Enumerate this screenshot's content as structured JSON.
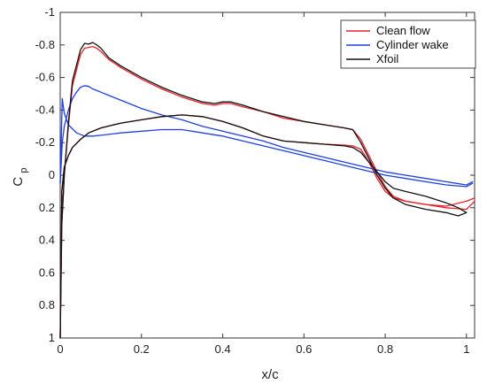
{
  "chart_data": {
    "type": "line",
    "title": "",
    "xlabel": "x/c",
    "ylabel_main": "C",
    "ylabel_sub": "p",
    "xlim": [
      0,
      1.02
    ],
    "ylim": [
      1,
      -1
    ],
    "y_axis_reversed": true,
    "grid": false,
    "legend_position": "top-right",
    "x_ticks": [
      0,
      0.2,
      0.4,
      0.6,
      0.8,
      1
    ],
    "x_tick_labels": [
      "0",
      "0.2",
      "0.4",
      "0.6",
      "0.8",
      "1"
    ],
    "y_ticks": [
      -1,
      -0.8,
      -0.6,
      -0.4,
      -0.2,
      0,
      0.2,
      0.4,
      0.6,
      0.8,
      1
    ],
    "y_tick_labels": [
      "-1",
      "-0.8",
      "-0.6",
      "-0.4",
      "-0.2",
      "0",
      "0.2",
      "0.4",
      "0.6",
      "0.8",
      "1"
    ],
    "series": [
      {
        "name": "Clean flow",
        "color": "#e8202a",
        "upper": {
          "x": [
            0,
            0.004,
            0.01,
            0.02,
            0.03,
            0.05,
            0.06,
            0.07,
            0.08,
            0.09,
            0.1,
            0.12,
            0.15,
            0.2,
            0.25,
            0.3,
            0.35,
            0.38,
            0.4,
            0.42,
            0.45,
            0.5,
            0.55,
            0.6,
            0.65,
            0.7,
            0.72,
            0.74,
            0.76,
            0.78,
            0.8,
            0.82,
            0.85,
            0.9,
            0.95,
            1.0,
            1.02
          ],
          "y": [
            1.0,
            0.3,
            0.0,
            -0.3,
            -0.55,
            -0.74,
            -0.78,
            -0.785,
            -0.79,
            -0.78,
            -0.76,
            -0.71,
            -0.66,
            -0.59,
            -0.53,
            -0.48,
            -0.44,
            -0.43,
            -0.44,
            -0.44,
            -0.42,
            -0.39,
            -0.35,
            -0.33,
            -0.31,
            -0.29,
            -0.28,
            -0.22,
            -0.12,
            -0.02,
            0.07,
            0.13,
            0.16,
            0.18,
            0.2,
            0.21,
            0.16
          ]
        },
        "lower": {
          "x": [
            0,
            0.004,
            0.01,
            0.02,
            0.03,
            0.05,
            0.07,
            0.1,
            0.15,
            0.2,
            0.25,
            0.3,
            0.35,
            0.4,
            0.45,
            0.5,
            0.55,
            0.6,
            0.65,
            0.7,
            0.72,
            0.74,
            0.76,
            0.78,
            0.8,
            0.82,
            0.85,
            0.9,
            0.95,
            1.0,
            1.02
          ],
          "y": [
            1.0,
            0.1,
            -0.05,
            -0.12,
            -0.17,
            -0.22,
            -0.26,
            -0.29,
            -0.32,
            -0.34,
            -0.36,
            -0.37,
            -0.36,
            -0.33,
            -0.29,
            -0.24,
            -0.21,
            -0.2,
            -0.19,
            -0.185,
            -0.18,
            -0.16,
            -0.08,
            0.02,
            0.1,
            0.14,
            0.16,
            0.18,
            0.19,
            0.16,
            0.14
          ]
        }
      },
      {
        "name": "Cylinder wake",
        "color": "#1f3fe0",
        "upper": {
          "x": [
            0,
            0.005,
            0.01,
            0.02,
            0.03,
            0.04,
            0.05,
            0.06,
            0.07,
            0.08,
            0.1,
            0.15,
            0.2,
            0.25,
            0.3,
            0.35,
            0.4,
            0.45,
            0.5,
            0.55,
            0.6,
            0.65,
            0.7,
            0.75,
            0.8,
            0.85,
            0.9,
            0.95,
            1.0,
            1.015
          ],
          "y": [
            0.05,
            -0.2,
            -0.3,
            -0.4,
            -0.47,
            -0.51,
            -0.54,
            -0.55,
            -0.545,
            -0.53,
            -0.51,
            -0.46,
            -0.41,
            -0.37,
            -0.34,
            -0.3,
            -0.27,
            -0.24,
            -0.21,
            -0.17,
            -0.14,
            -0.11,
            -0.08,
            -0.05,
            -0.02,
            0.0,
            0.02,
            0.04,
            0.06,
            0.04
          ]
        },
        "lower": {
          "x": [
            0,
            0.005,
            0.01,
            0.02,
            0.04,
            0.06,
            0.08,
            0.1,
            0.15,
            0.2,
            0.25,
            0.3,
            0.35,
            0.4,
            0.45,
            0.5,
            0.55,
            0.6,
            0.65,
            0.7,
            0.75,
            0.8,
            0.85,
            0.9,
            0.95,
            1.0,
            1.015
          ],
          "y": [
            0.05,
            -0.47,
            -0.38,
            -0.31,
            -0.26,
            -0.24,
            -0.24,
            -0.245,
            -0.26,
            -0.27,
            -0.28,
            -0.28,
            -0.26,
            -0.24,
            -0.21,
            -0.18,
            -0.15,
            -0.12,
            -0.09,
            -0.06,
            -0.03,
            0.0,
            0.02,
            0.04,
            0.06,
            0.07,
            0.05
          ]
        }
      },
      {
        "name": "Xfoil",
        "color": "#111111",
        "upper": {
          "x": [
            0,
            0.004,
            0.01,
            0.02,
            0.03,
            0.05,
            0.06,
            0.07,
            0.08,
            0.09,
            0.1,
            0.12,
            0.15,
            0.2,
            0.25,
            0.3,
            0.35,
            0.38,
            0.4,
            0.42,
            0.45,
            0.5,
            0.55,
            0.6,
            0.65,
            0.7,
            0.72,
            0.74,
            0.76,
            0.78,
            0.8,
            0.82,
            0.85,
            0.9,
            0.95,
            0.98,
            1.0
          ],
          "y": [
            1.0,
            0.3,
            0.0,
            -0.32,
            -0.58,
            -0.77,
            -0.81,
            -0.805,
            -0.815,
            -0.8,
            -0.78,
            -0.72,
            -0.67,
            -0.6,
            -0.54,
            -0.49,
            -0.45,
            -0.44,
            -0.45,
            -0.45,
            -0.43,
            -0.39,
            -0.36,
            -0.33,
            -0.31,
            -0.29,
            -0.28,
            -0.2,
            -0.1,
            0.0,
            0.08,
            0.14,
            0.18,
            0.21,
            0.23,
            0.25,
            0.23
          ]
        },
        "lower": {
          "x": [
            0,
            0.004,
            0.01,
            0.02,
            0.03,
            0.05,
            0.07,
            0.1,
            0.15,
            0.2,
            0.25,
            0.3,
            0.35,
            0.4,
            0.45,
            0.5,
            0.55,
            0.6,
            0.65,
            0.7,
            0.72,
            0.74,
            0.76,
            0.78,
            0.8,
            0.82,
            0.85,
            0.9,
            0.95,
            0.98,
            1.0
          ],
          "y": [
            1.0,
            0.1,
            -0.05,
            -0.12,
            -0.17,
            -0.22,
            -0.26,
            -0.29,
            -0.32,
            -0.34,
            -0.36,
            -0.37,
            -0.36,
            -0.33,
            -0.29,
            -0.24,
            -0.21,
            -0.2,
            -0.19,
            -0.18,
            -0.17,
            -0.14,
            -0.08,
            -0.02,
            0.04,
            0.08,
            0.1,
            0.13,
            0.17,
            0.2,
            0.23
          ]
        }
      }
    ]
  }
}
